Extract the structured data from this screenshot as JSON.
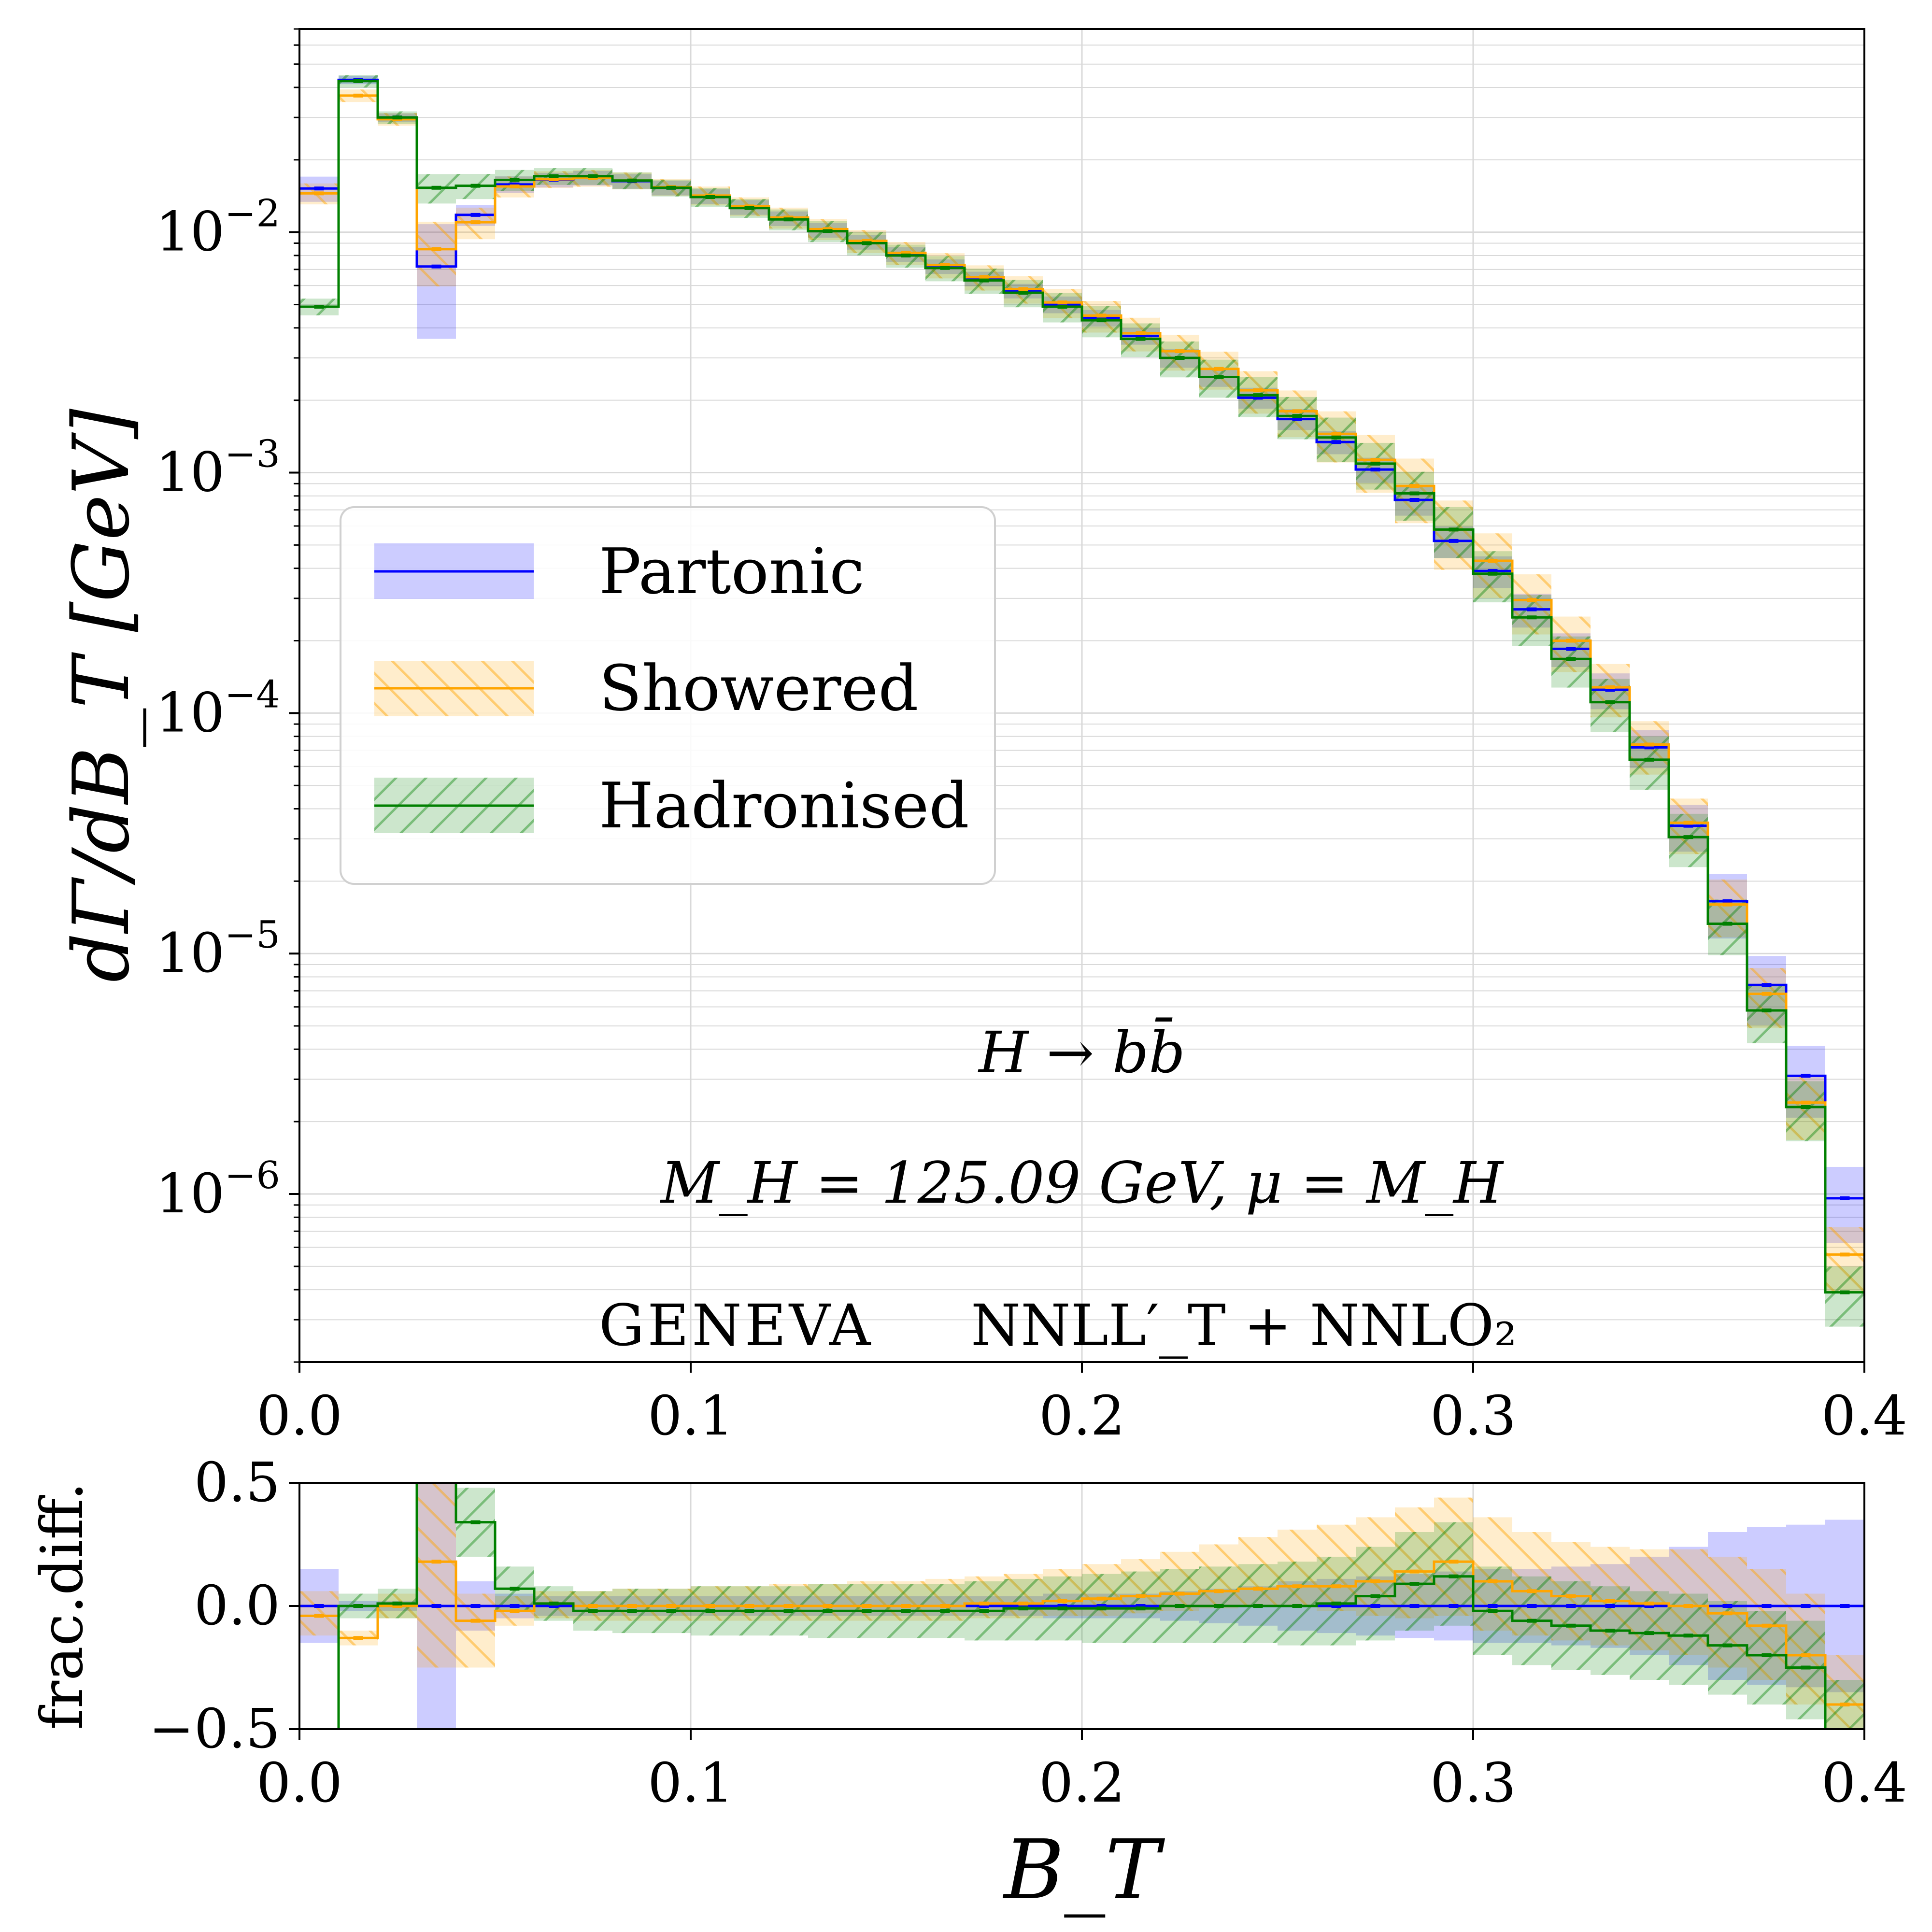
{
  "colors": {
    "Partonic": "#0000ff",
    "Showered": "#ffa500",
    "Hadronised": "#008000",
    "grid": "#d9d9d9"
  },
  "annotations": {
    "process": "H → bb̄",
    "params": "M_H = 125.09 GeV,  μ = M_H",
    "generator": "GENEVA",
    "accuracy": "NNLL′_T + NNLO₂"
  },
  "chart_data": [
    {
      "type": "line",
      "panel": "main",
      "drawstyle": "steps",
      "title": "",
      "xlabel": "",
      "ylabel": "dΓ/dB_T  [GeV]",
      "xlim": [
        0.0,
        0.4
      ],
      "ylim": [
        2e-07,
        0.07
      ],
      "yscale": "log",
      "grid": true,
      "legend": {
        "placement": "center-left",
        "entries": [
          "Partonic",
          "Showered",
          "Hadronised"
        ]
      },
      "x_ticks": [
        "0.0",
        "0.1",
        "0.2",
        "0.3",
        "0.4"
      ],
      "y_ticks": [
        {
          "value": 1e-06,
          "label": "10−6"
        },
        {
          "value": 1e-05,
          "label": "10−5"
        },
        {
          "value": 0.0001,
          "label": "10−4"
        },
        {
          "value": 0.001,
          "label": "10−3"
        },
        {
          "value": 0.01,
          "label": "10−2"
        }
      ],
      "bin_edges": [
        0.0,
        0.01,
        0.02,
        0.03,
        0.04,
        0.05,
        0.06,
        0.07,
        0.08,
        0.09,
        0.1,
        0.11,
        0.12,
        0.13,
        0.14,
        0.15,
        0.16,
        0.17,
        0.18,
        0.19,
        0.2,
        0.21,
        0.22,
        0.23,
        0.24,
        0.25,
        0.26,
        0.27,
        0.28,
        0.29,
        0.3,
        0.31,
        0.32,
        0.33,
        0.34,
        0.35,
        0.36,
        0.37,
        0.38,
        0.39,
        0.4
      ],
      "series": [
        {
          "name": "Partonic",
          "values": [
            0.0152,
            0.043,
            0.03,
            0.0072,
            0.0118,
            0.0158,
            0.0165,
            0.0168,
            0.0163,
            0.0153,
            0.0141,
            0.0127,
            0.0114,
            0.0102,
            0.0091,
            0.0081,
            0.0072,
            0.0064,
            0.0057,
            0.005,
            0.0044,
            0.0037,
            0.003,
            0.0025,
            0.00205,
            0.00167,
            0.00134,
            0.00103,
            0.00077,
            0.00052,
            0.00039,
            0.00027,
            0.000185,
            0.000125,
            7.2e-05,
            3.4e-05,
            1.65e-05,
            7.4e-06,
            3.1e-06,
            9.6e-07
          ],
          "band_rel": [
            0.12,
            0.04,
            0.04,
            0.5,
            0.1,
            0.08,
            0.07,
            0.07,
            0.07,
            0.07,
            0.07,
            0.07,
            0.07,
            0.07,
            0.07,
            0.07,
            0.07,
            0.07,
            0.07,
            0.08,
            0.08,
            0.08,
            0.09,
            0.09,
            0.1,
            0.1,
            0.11,
            0.12,
            0.14,
            0.15,
            0.15,
            0.16,
            0.16,
            0.17,
            0.18,
            0.22,
            0.3,
            0.32,
            0.33,
            0.35
          ]
        },
        {
          "name": "Showered",
          "values": [
            0.0145,
            0.037,
            0.0295,
            0.0085,
            0.011,
            0.0155,
            0.0166,
            0.0168,
            0.0164,
            0.0154,
            0.0142,
            0.0128,
            0.0115,
            0.0103,
            0.0092,
            0.0082,
            0.0073,
            0.0065,
            0.0058,
            0.0051,
            0.0045,
            0.0038,
            0.0032,
            0.0027,
            0.0022,
            0.0018,
            0.00145,
            0.00113,
            0.00088,
            0.00058,
            0.00043,
            0.000295,
            0.0002,
            0.000128,
            7.4e-05,
            3.5e-05,
            1.6e-05,
            6.8e-06,
            2.4e-06,
            5.6e-07
          ],
          "band_rel": [
            0.1,
            0.06,
            0.06,
            0.3,
            0.15,
            0.1,
            0.08,
            0.08,
            0.08,
            0.08,
            0.09,
            0.09,
            0.1,
            0.1,
            0.11,
            0.11,
            0.12,
            0.12,
            0.13,
            0.14,
            0.15,
            0.16,
            0.17,
            0.18,
            0.2,
            0.22,
            0.24,
            0.27,
            0.3,
            0.32,
            0.3,
            0.28,
            0.26,
            0.25,
            0.25,
            0.26,
            0.27,
            0.28,
            0.3,
            0.3
          ]
        },
        {
          "name": "Hadronised",
          "values": [
            0.0049,
            0.0425,
            0.03,
            0.0153,
            0.0156,
            0.0165,
            0.0171,
            0.0171,
            0.0164,
            0.0153,
            0.014,
            0.0126,
            0.0113,
            0.0101,
            0.009,
            0.008,
            0.0071,
            0.0063,
            0.0056,
            0.0049,
            0.0043,
            0.0036,
            0.003,
            0.0025,
            0.0021,
            0.00172,
            0.0014,
            0.00109,
            0.00082,
            0.00058,
            0.00038,
            0.00025,
            0.000168,
            0.000111,
            6.4e-05,
            3.05e-05,
            1.33e-05,
            5.8e-06,
            2.3e-06,
            3.9e-07
          ],
          "band_rel": [
            0.08,
            0.06,
            0.06,
            0.14,
            0.12,
            0.1,
            0.08,
            0.08,
            0.08,
            0.08,
            0.09,
            0.09,
            0.1,
            0.1,
            0.11,
            0.11,
            0.12,
            0.12,
            0.13,
            0.14,
            0.15,
            0.16,
            0.17,
            0.18,
            0.19,
            0.2,
            0.21,
            0.22,
            0.23,
            0.24,
            0.24,
            0.24,
            0.24,
            0.25,
            0.25,
            0.25,
            0.26,
            0.27,
            0.28,
            0.28
          ]
        }
      ]
    },
    {
      "type": "line",
      "panel": "ratio",
      "drawstyle": "steps",
      "title": "",
      "xlabel": "B_T",
      "ylabel": "frac.diff.",
      "xlim": [
        0.0,
        0.4
      ],
      "ylim": [
        -0.5,
        0.5
      ],
      "grid": true,
      "x_ticks": [
        "0.0",
        "0.1",
        "0.2",
        "0.3",
        "0.4"
      ],
      "y_ticks": [
        {
          "value": 0.5,
          "label": "0.5"
        },
        {
          "value": 0.0,
          "label": "0.0"
        },
        {
          "value": -0.5,
          "label": "−0.5"
        }
      ],
      "bin_edges": [
        0.0,
        0.01,
        0.02,
        0.03,
        0.04,
        0.05,
        0.06,
        0.07,
        0.08,
        0.09,
        0.1,
        0.11,
        0.12,
        0.13,
        0.14,
        0.15,
        0.16,
        0.17,
        0.18,
        0.19,
        0.2,
        0.21,
        0.22,
        0.23,
        0.24,
        0.25,
        0.26,
        0.27,
        0.28,
        0.29,
        0.3,
        0.31,
        0.32,
        0.33,
        0.34,
        0.35,
        0.36,
        0.37,
        0.38,
        0.39,
        0.4
      ],
      "series": [
        {
          "name": "Partonic",
          "values": [
            0.0,
            0.0,
            0.0,
            0.0,
            0.0,
            0.0,
            0.0,
            0.0,
            0.0,
            0.0,
            0.0,
            0.0,
            0.0,
            0.0,
            0.0,
            0.0,
            0.0,
            0.0,
            0.0,
            0.0,
            0.0,
            0.0,
            0.0,
            0.0,
            0.0,
            0.0,
            0.0,
            0.0,
            0.0,
            0.0,
            0.0,
            0.0,
            0.0,
            0.0,
            0.0,
            0.0,
            0.0,
            0.0,
            0.0,
            0.0
          ],
          "band": [
            [
              -0.15,
              0.15
            ],
            [
              -0.02,
              0.02
            ],
            [
              -0.02,
              0.02
            ],
            [
              -0.5,
              0.5
            ],
            [
              -0.1,
              0.1
            ],
            [
              -0.05,
              0.05
            ],
            [
              -0.04,
              0.04
            ],
            [
              -0.04,
              0.04
            ],
            [
              -0.04,
              0.04
            ],
            [
              -0.04,
              0.04
            ],
            [
              -0.04,
              0.04
            ],
            [
              -0.04,
              0.04
            ],
            [
              -0.04,
              0.04
            ],
            [
              -0.04,
              0.04
            ],
            [
              -0.04,
              0.04
            ],
            [
              -0.04,
              0.04
            ],
            [
              -0.04,
              0.04
            ],
            [
              -0.04,
              0.04
            ],
            [
              -0.04,
              0.04
            ],
            [
              -0.05,
              0.05
            ],
            [
              -0.05,
              0.05
            ],
            [
              -0.05,
              0.05
            ],
            [
              -0.06,
              0.06
            ],
            [
              -0.07,
              0.07
            ],
            [
              -0.08,
              0.08
            ],
            [
              -0.1,
              0.1
            ],
            [
              -0.11,
              0.11
            ],
            [
              -0.12,
              0.12
            ],
            [
              -0.13,
              0.13
            ],
            [
              -0.14,
              0.14
            ],
            [
              -0.15,
              0.15
            ],
            [
              -0.15,
              0.15
            ],
            [
              -0.16,
              0.16
            ],
            [
              -0.17,
              0.17
            ],
            [
              -0.2,
              0.2
            ],
            [
              -0.24,
              0.24
            ],
            [
              -0.3,
              0.3
            ],
            [
              -0.32,
              0.32
            ],
            [
              -0.33,
              0.33
            ],
            [
              -0.35,
              0.35
            ]
          ]
        },
        {
          "name": "Showered",
          "values": [
            -0.04,
            -0.13,
            0.0,
            0.18,
            -0.06,
            -0.02,
            0.01,
            0.0,
            0.0,
            0.0,
            0.0,
            0.0,
            0.0,
            0.0,
            0.0,
            0.0,
            0.0,
            0.01,
            0.01,
            0.02,
            0.03,
            0.04,
            0.05,
            0.06,
            0.07,
            0.08,
            0.08,
            0.1,
            0.14,
            0.18,
            0.1,
            0.06,
            0.04,
            0.02,
            0.01,
            0.0,
            -0.03,
            -0.08,
            -0.2,
            -0.4
          ],
          "band": [
            [
              -0.12,
              0.06
            ],
            [
              -0.16,
              -0.1
            ],
            [
              -0.05,
              0.05
            ],
            [
              -0.25,
              0.55
            ],
            [
              -0.25,
              0.05
            ],
            [
              -0.08,
              0.04
            ],
            [
              -0.05,
              0.06
            ],
            [
              -0.06,
              0.06
            ],
            [
              -0.06,
              0.07
            ],
            [
              -0.06,
              0.07
            ],
            [
              -0.06,
              0.08
            ],
            [
              -0.06,
              0.08
            ],
            [
              -0.06,
              0.09
            ],
            [
              -0.06,
              0.09
            ],
            [
              -0.06,
              0.1
            ],
            [
              -0.06,
              0.1
            ],
            [
              -0.06,
              0.11
            ],
            [
              -0.05,
              0.12
            ],
            [
              -0.05,
              0.13
            ],
            [
              -0.04,
              0.15
            ],
            [
              -0.04,
              0.17
            ],
            [
              -0.03,
              0.19
            ],
            [
              -0.02,
              0.22
            ],
            [
              -0.01,
              0.25
            ],
            [
              0.0,
              0.28
            ],
            [
              0.0,
              0.31
            ],
            [
              -0.02,
              0.33
            ],
            [
              -0.04,
              0.36
            ],
            [
              -0.05,
              0.4
            ],
            [
              -0.04,
              0.44
            ],
            [
              -0.1,
              0.36
            ],
            [
              -0.12,
              0.3
            ],
            [
              -0.14,
              0.26
            ],
            [
              -0.16,
              0.24
            ],
            [
              -0.18,
              0.23
            ],
            [
              -0.2,
              0.23
            ],
            [
              -0.25,
              0.2
            ],
            [
              -0.3,
              0.15
            ],
            [
              -0.4,
              0.05
            ],
            [
              -0.5,
              -0.2
            ]
          ]
        },
        {
          "name": "Hadronised",
          "values": [
            -1.0,
            0.0,
            0.01,
            0.65,
            0.34,
            0.07,
            0.01,
            -0.02,
            -0.02,
            -0.02,
            -0.02,
            -0.02,
            -0.02,
            -0.02,
            -0.02,
            -0.02,
            -0.02,
            -0.02,
            -0.01,
            -0.01,
            -0.01,
            -0.01,
            0.0,
            0.0,
            0.0,
            0.0,
            0.01,
            0.04,
            0.09,
            0.12,
            -0.02,
            -0.06,
            -0.08,
            -0.1,
            -0.11,
            -0.12,
            -0.16,
            -0.2,
            -0.25,
            -0.6
          ],
          "band": [
            [
              -1.0,
              -0.9
            ],
            [
              -0.05,
              0.05
            ],
            [
              -0.05,
              0.07
            ],
            [
              0.5,
              0.8
            ],
            [
              0.2,
              0.48
            ],
            [
              -0.02,
              0.16
            ],
            [
              -0.06,
              0.08
            ],
            [
              -0.1,
              0.06
            ],
            [
              -0.11,
              0.07
            ],
            [
              -0.11,
              0.07
            ],
            [
              -0.12,
              0.08
            ],
            [
              -0.12,
              0.08
            ],
            [
              -0.12,
              0.08
            ],
            [
              -0.13,
              0.09
            ],
            [
              -0.13,
              0.09
            ],
            [
              -0.13,
              0.09
            ],
            [
              -0.13,
              0.09
            ],
            [
              -0.14,
              0.1
            ],
            [
              -0.14,
              0.11
            ],
            [
              -0.14,
              0.12
            ],
            [
              -0.15,
              0.13
            ],
            [
              -0.15,
              0.14
            ],
            [
              -0.15,
              0.15
            ],
            [
              -0.15,
              0.16
            ],
            [
              -0.15,
              0.17
            ],
            [
              -0.16,
              0.18
            ],
            [
              -0.16,
              0.2
            ],
            [
              -0.14,
              0.24
            ],
            [
              -0.1,
              0.3
            ],
            [
              -0.08,
              0.34
            ],
            [
              -0.2,
              0.16
            ],
            [
              -0.24,
              0.12
            ],
            [
              -0.26,
              0.1
            ],
            [
              -0.28,
              0.08
            ],
            [
              -0.3,
              0.06
            ],
            [
              -0.32,
              0.05
            ],
            [
              -0.36,
              0.02
            ],
            [
              -0.4,
              -0.02
            ],
            [
              -0.46,
              -0.06
            ],
            [
              -0.5,
              -0.3
            ]
          ]
        }
      ]
    }
  ]
}
